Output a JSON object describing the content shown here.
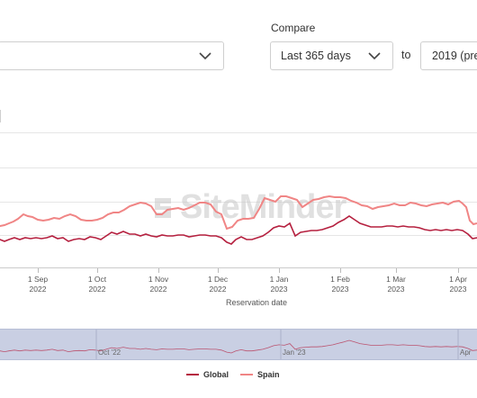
{
  "compare": {
    "label": "Compare",
    "period_value": "Last 365 days",
    "to_label": "to",
    "year_value": "2019 (pre"
  },
  "watermark": {
    "text": "SiteMinder"
  },
  "chart_data": {
    "type": "line",
    "xlabel": "Reservation date",
    "x_ticks": [
      {
        "line1": "1 Sep",
        "line2": "2022"
      },
      {
        "line1": "1 Oct",
        "line2": "2022"
      },
      {
        "line1": "1 Nov",
        "line2": "2022"
      },
      {
        "line1": "1 Dec",
        "line2": "2022"
      },
      {
        "line1": "1 Jan",
        "line2": "2023"
      },
      {
        "line1": "1 Feb",
        "line2": "2023"
      },
      {
        "line1": "1 Mar",
        "line2": "2023"
      },
      {
        "line1": "1 Apr",
        "line2": "2023"
      }
    ],
    "series": [
      {
        "name": "Global",
        "color": "#b5203f",
        "points": [
          [
            -7,
            266
          ],
          [
            0,
            266
          ],
          [
            5,
            268
          ],
          [
            10,
            266
          ],
          [
            16,
            264
          ],
          [
            22,
            266
          ],
          [
            28,
            264
          ],
          [
            34,
            265
          ],
          [
            40,
            264
          ],
          [
            46,
            265
          ],
          [
            52,
            264
          ],
          [
            58,
            262
          ],
          [
            64,
            265
          ],
          [
            70,
            264
          ],
          [
            76,
            268
          ],
          [
            82,
            266
          ],
          [
            88,
            265
          ],
          [
            94,
            266
          ],
          [
            100,
            263
          ],
          [
            106,
            264
          ],
          [
            112,
            266
          ],
          [
            118,
            262
          ],
          [
            124,
            258
          ],
          [
            130,
            260
          ],
          [
            137,
            257
          ],
          [
            144,
            260
          ],
          [
            150,
            260
          ],
          [
            156,
            262
          ],
          [
            162,
            260
          ],
          [
            168,
            262
          ],
          [
            174,
            263
          ],
          [
            180,
            261
          ],
          [
            186,
            262
          ],
          [
            192,
            262
          ],
          [
            198,
            261
          ],
          [
            204,
            261
          ],
          [
            210,
            263
          ],
          [
            216,
            262
          ],
          [
            222,
            261
          ],
          [
            228,
            261
          ],
          [
            234,
            262
          ],
          [
            240,
            262
          ],
          [
            246,
            264
          ],
          [
            252,
            269
          ],
          [
            257,
            271
          ],
          [
            262,
            266
          ],
          [
            268,
            263
          ],
          [
            274,
            266
          ],
          [
            280,
            266
          ],
          [
            286,
            264
          ],
          [
            292,
            262
          ],
          [
            298,
            258
          ],
          [
            304,
            253
          ],
          [
            310,
            251
          ],
          [
            316,
            252
          ],
          [
            322,
            248
          ],
          [
            328,
            262
          ],
          [
            334,
            258
          ],
          [
            340,
            257
          ],
          [
            346,
            256
          ],
          [
            352,
            256
          ],
          [
            358,
            255
          ],
          [
            364,
            253
          ],
          [
            370,
            251
          ],
          [
            376,
            247
          ],
          [
            382,
            244
          ],
          [
            388,
            240
          ],
          [
            394,
            244
          ],
          [
            400,
            248
          ],
          [
            406,
            250
          ],
          [
            412,
            252
          ],
          [
            418,
            252
          ],
          [
            424,
            252
          ],
          [
            430,
            251
          ],
          [
            436,
            251
          ],
          [
            442,
            252
          ],
          [
            448,
            251
          ],
          [
            454,
            252
          ],
          [
            460,
            252
          ],
          [
            466,
            253
          ],
          [
            472,
            255
          ],
          [
            478,
            256
          ],
          [
            484,
            255
          ],
          [
            490,
            256
          ],
          [
            496,
            255
          ],
          [
            502,
            256
          ],
          [
            508,
            255
          ],
          [
            514,
            256
          ],
          [
            520,
            260
          ],
          [
            525,
            265
          ],
          [
            530,
            264
          ]
        ]
      },
      {
        "name": "Spain",
        "color": "#f08585",
        "points": [
          [
            -7,
            252
          ],
          [
            0,
            251
          ],
          [
            5,
            250
          ],
          [
            10,
            248
          ],
          [
            15,
            246
          ],
          [
            20,
            243
          ],
          [
            26,
            238
          ],
          [
            31,
            240
          ],
          [
            36,
            241
          ],
          [
            42,
            244
          ],
          [
            48,
            245
          ],
          [
            54,
            244
          ],
          [
            60,
            242
          ],
          [
            66,
            243
          ],
          [
            72,
            240
          ],
          [
            78,
            238
          ],
          [
            84,
            240
          ],
          [
            90,
            244
          ],
          [
            96,
            245
          ],
          [
            102,
            245
          ],
          [
            108,
            244
          ],
          [
            114,
            242
          ],
          [
            120,
            238
          ],
          [
            126,
            236
          ],
          [
            132,
            236
          ],
          [
            138,
            233
          ],
          [
            144,
            229
          ],
          [
            150,
            227
          ],
          [
            156,
            225
          ],
          [
            162,
            226
          ],
          [
            168,
            229
          ],
          [
            174,
            238
          ],
          [
            180,
            238
          ],
          [
            186,
            233
          ],
          [
            192,
            232
          ],
          [
            198,
            231
          ],
          [
            204,
            233
          ],
          [
            210,
            231
          ],
          [
            216,
            228
          ],
          [
            222,
            225
          ],
          [
            228,
            225
          ],
          [
            234,
            227
          ],
          [
            240,
            235
          ],
          [
            246,
            238
          ],
          [
            252,
            254
          ],
          [
            258,
            252
          ],
          [
            264,
            245
          ],
          [
            270,
            243
          ],
          [
            276,
            243
          ],
          [
            282,
            242
          ],
          [
            288,
            232
          ],
          [
            294,
            220
          ],
          [
            300,
            222
          ],
          [
            306,
            224
          ],
          [
            312,
            218
          ],
          [
            318,
            218
          ],
          [
            324,
            220
          ],
          [
            330,
            222
          ],
          [
            336,
            230
          ],
          [
            342,
            226
          ],
          [
            348,
            222
          ],
          [
            354,
            221
          ],
          [
            360,
            219
          ],
          [
            366,
            218
          ],
          [
            372,
            219
          ],
          [
            378,
            219
          ],
          [
            384,
            220
          ],
          [
            390,
            223
          ],
          [
            396,
            225
          ],
          [
            402,
            228
          ],
          [
            408,
            229
          ],
          [
            414,
            232
          ],
          [
            420,
            230
          ],
          [
            426,
            229
          ],
          [
            432,
            228
          ],
          [
            438,
            226
          ],
          [
            444,
            228
          ],
          [
            450,
            228
          ],
          [
            456,
            225
          ],
          [
            462,
            226
          ],
          [
            468,
            228
          ],
          [
            474,
            229
          ],
          [
            480,
            227
          ],
          [
            486,
            226
          ],
          [
            492,
            225
          ],
          [
            498,
            227
          ],
          [
            504,
            224
          ],
          [
            510,
            223
          ],
          [
            514,
            226
          ],
          [
            518,
            230
          ],
          [
            522,
            245
          ],
          [
            526,
            249
          ],
          [
            530,
            248
          ]
        ]
      }
    ],
    "navigator_labels": [
      "Oct '22",
      "Jan '23",
      "Apr"
    ]
  }
}
